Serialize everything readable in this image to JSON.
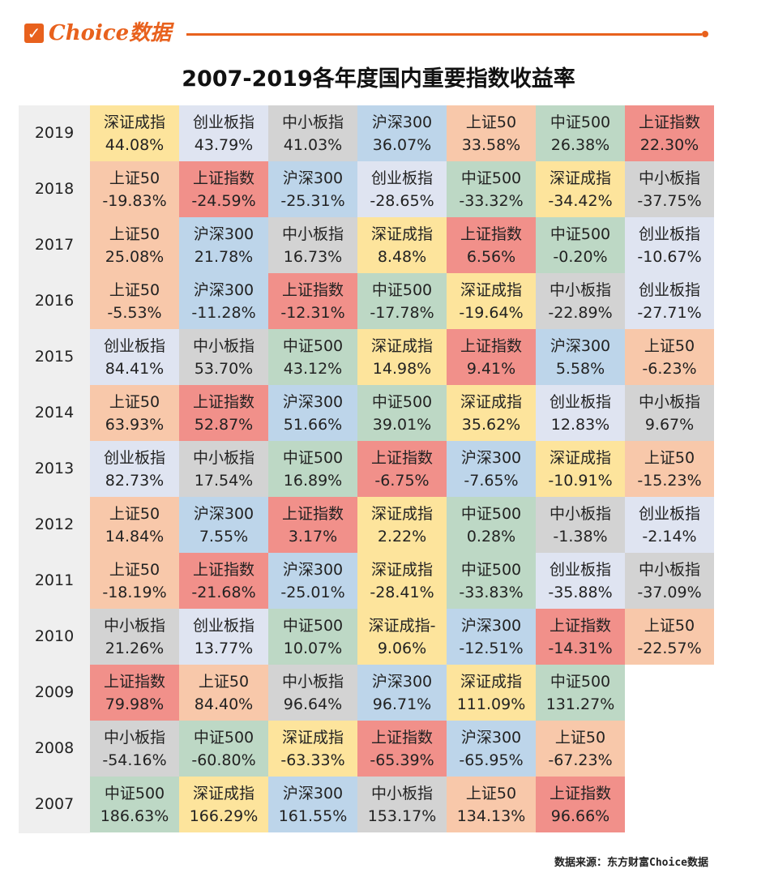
{
  "header": {
    "logo_text": "Choice数据"
  },
  "title": "2007-2019各年度国内重要指数收益率",
  "source": "数据来源：东方财富Choice数据",
  "colors": {
    "深证成指": "#fde49c",
    "创业板指": "#dfe4f1",
    "中小板指": "#d3d3d3",
    "沪深300": "#bdd5ea",
    "上证50": "#f8c8aa",
    "中证500": "#bdd8c5",
    "上证指数": "#f1908a"
  },
  "table_data": {
    "type": "table",
    "rows": [
      {
        "year": "2019",
        "cells": [
          [
            "深证成指",
            "44.08%"
          ],
          [
            "创业板指",
            "43.79%"
          ],
          [
            "中小板指",
            "41.03%"
          ],
          [
            "沪深300",
            "36.07%"
          ],
          [
            "上证50",
            "33.58%"
          ],
          [
            "中证500",
            "26.38%"
          ],
          [
            "上证指数",
            "22.30%"
          ]
        ]
      },
      {
        "year": "2018",
        "cells": [
          [
            "上证50",
            "-19.83%"
          ],
          [
            "上证指数",
            "-24.59%"
          ],
          [
            "沪深300",
            "-25.31%"
          ],
          [
            "创业板指",
            "-28.65%"
          ],
          [
            "中证500",
            "-33.32%"
          ],
          [
            "深证成指",
            "-34.42%"
          ],
          [
            "中小板指",
            "-37.75%"
          ]
        ]
      },
      {
        "year": "2017",
        "cells": [
          [
            "上证50",
            "25.08%"
          ],
          [
            "沪深300",
            "21.78%"
          ],
          [
            "中小板指",
            "16.73%"
          ],
          [
            "深证成指",
            "8.48%"
          ],
          [
            "上证指数",
            "6.56%"
          ],
          [
            "中证500",
            "-0.20%"
          ],
          [
            "创业板指",
            "-10.67%"
          ]
        ]
      },
      {
        "year": "2016",
        "cells": [
          [
            "上证50",
            "-5.53%"
          ],
          [
            "沪深300",
            "-11.28%"
          ],
          [
            "上证指数",
            "-12.31%"
          ],
          [
            "中证500",
            "-17.78%"
          ],
          [
            "深证成指",
            "-19.64%"
          ],
          [
            "中小板指",
            "-22.89%"
          ],
          [
            "创业板指",
            "-27.71%"
          ]
        ]
      },
      {
        "year": "2015",
        "cells": [
          [
            "创业板指",
            "84.41%"
          ],
          [
            "中小板指",
            "53.70%"
          ],
          [
            "中证500",
            "43.12%"
          ],
          [
            "深证成指",
            "14.98%"
          ],
          [
            "上证指数",
            "9.41%"
          ],
          [
            "沪深300",
            "5.58%"
          ],
          [
            "上证50",
            "-6.23%"
          ]
        ]
      },
      {
        "year": "2014",
        "cells": [
          [
            "上证50",
            "63.93%"
          ],
          [
            "上证指数",
            "52.87%"
          ],
          [
            "沪深300",
            "51.66%"
          ],
          [
            "中证500",
            "39.01%"
          ],
          [
            "深证成指",
            "35.62%"
          ],
          [
            "创业板指",
            "12.83%"
          ],
          [
            "中小板指",
            "9.67%"
          ]
        ]
      },
      {
        "year": "2013",
        "cells": [
          [
            "创业板指",
            "82.73%"
          ],
          [
            "中小板指",
            "17.54%"
          ],
          [
            "中证500",
            "16.89%"
          ],
          [
            "上证指数",
            "-6.75%"
          ],
          [
            "沪深300",
            "-7.65%"
          ],
          [
            "深证成指",
            "-10.91%"
          ],
          [
            "上证50",
            "-15.23%"
          ]
        ]
      },
      {
        "year": "2012",
        "cells": [
          [
            "上证50",
            "14.84%"
          ],
          [
            "沪深300",
            "7.55%"
          ],
          [
            "上证指数",
            "3.17%"
          ],
          [
            "深证成指",
            "2.22%"
          ],
          [
            "中证500",
            "0.28%"
          ],
          [
            "中小板指",
            "-1.38%"
          ],
          [
            "创业板指",
            "-2.14%"
          ]
        ]
      },
      {
        "year": "2011",
        "cells": [
          [
            "上证50",
            "-18.19%"
          ],
          [
            "上证指数",
            "-21.68%"
          ],
          [
            "沪深300",
            "-25.01%"
          ],
          [
            "深证成指",
            "-28.41%"
          ],
          [
            "中证500",
            "-33.83%"
          ],
          [
            "创业板指",
            "-35.88%"
          ],
          [
            "中小板指",
            "-37.09%"
          ]
        ]
      },
      {
        "year": "2010",
        "cells": [
          [
            "中小板指",
            "21.26%"
          ],
          [
            "创业板指",
            "13.77%"
          ],
          [
            "中证500",
            "10.07%"
          ],
          [
            "深证成指-",
            "9.06%"
          ],
          [
            "沪深300",
            "-12.51%"
          ],
          [
            "上证指数",
            "-14.31%"
          ],
          [
            "上证50",
            "-22.57%"
          ]
        ]
      },
      {
        "year": "2009",
        "cells": [
          [
            "上证指数",
            "79.98%"
          ],
          [
            "上证50",
            "84.40%"
          ],
          [
            "中小板指",
            "96.64%"
          ],
          [
            "沪深300",
            "96.71%"
          ],
          [
            "深证成指",
            "111.09%"
          ],
          [
            "中证500",
            "131.27%"
          ]
        ]
      },
      {
        "year": "2008",
        "cells": [
          [
            "中小板指",
            "-54.16%"
          ],
          [
            "中证500",
            "-60.80%"
          ],
          [
            "深证成指",
            "-63.33%"
          ],
          [
            "上证指数",
            "-65.39%"
          ],
          [
            "沪深300",
            "-65.95%"
          ],
          [
            "上证50",
            "-67.23%"
          ]
        ]
      },
      {
        "year": "2007",
        "cells": [
          [
            "中证500",
            "186.63%"
          ],
          [
            "深证成指",
            "166.29%"
          ],
          [
            "沪深300",
            "161.55%"
          ],
          [
            "中小板指",
            "153.17%"
          ],
          [
            "上证50",
            "134.13%"
          ],
          [
            "上证指数",
            "96.66%"
          ]
        ]
      }
    ]
  }
}
